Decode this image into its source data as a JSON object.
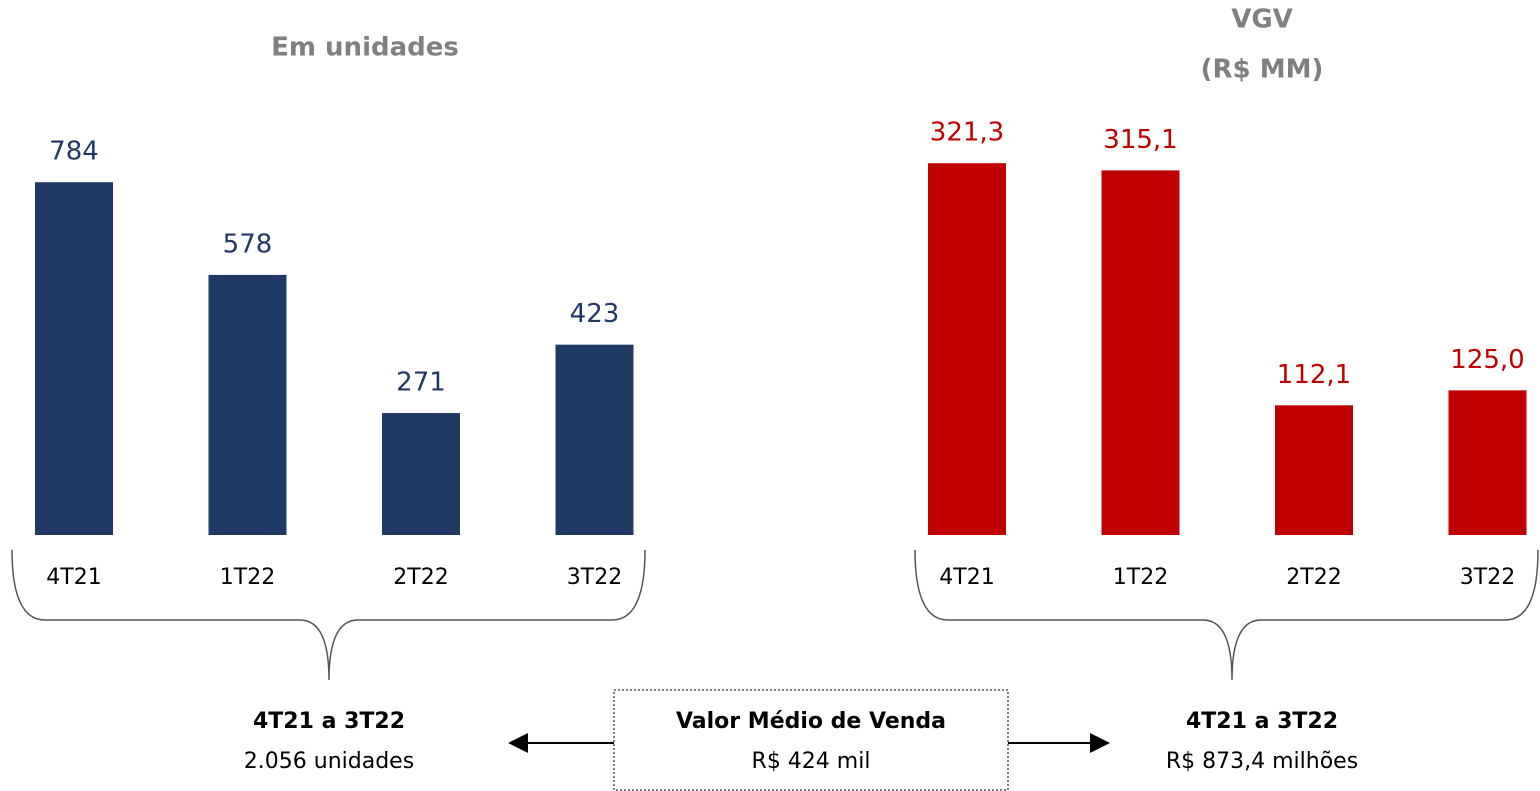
{
  "chart_data": [
    {
      "type": "bar",
      "title": "Em unidades",
      "categories": [
        "4T21",
        "1T22",
        "2T22",
        "3T22"
      ],
      "values": [
        784,
        578,
        271,
        423
      ],
      "color": "#203864",
      "ylim": [
        0,
        900
      ]
    },
    {
      "type": "bar",
      "title": "VGV",
      "subtitle": "(R$ MM)",
      "categories": [
        "4T21",
        "1T22",
        "2T22",
        "3T22"
      ],
      "values": [
        321.3,
        315.1,
        112.1,
        125.0
      ],
      "value_labels": [
        "321,3",
        "315,1",
        "112,1",
        "125,0"
      ],
      "color": "#c00000",
      "ylim": [
        0,
        350
      ]
    }
  ],
  "summary": {
    "left": {
      "title": "4T21 a 3T22",
      "text": "2.056 unidades"
    },
    "center": {
      "title": "Valor Médio de Venda",
      "text": "R$ 424 mil"
    },
    "right": {
      "title": "4T21 a 3T22",
      "text": "R$ 873,4 milhões"
    }
  }
}
